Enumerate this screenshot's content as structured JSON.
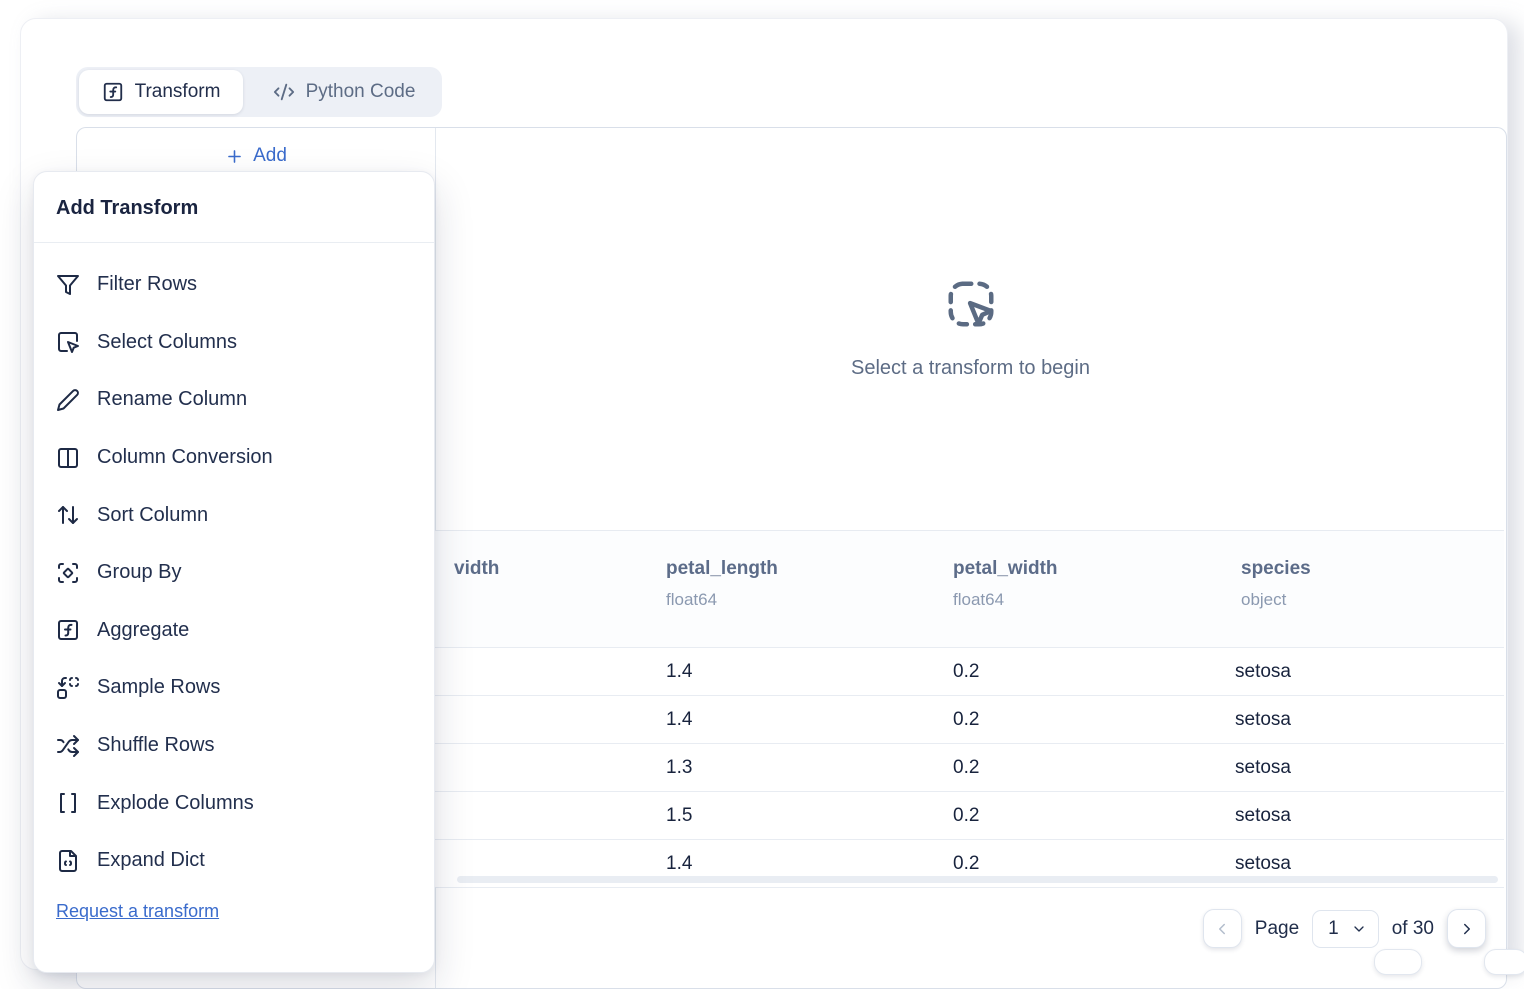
{
  "tabs": {
    "transform": "Transform",
    "python_code": "Python Code"
  },
  "add_button": {
    "label": "Add"
  },
  "add_transform_menu": {
    "title": "Add Transform",
    "items": [
      {
        "icon": "filter-icon",
        "label": "Filter Rows"
      },
      {
        "icon": "select-columns-icon",
        "label": "Select Columns"
      },
      {
        "icon": "rename-column-icon",
        "label": "Rename Column"
      },
      {
        "icon": "column-conversion-icon",
        "label": "Column Conversion"
      },
      {
        "icon": "sort-column-icon",
        "label": "Sort Column"
      },
      {
        "icon": "group-by-icon",
        "label": "Group By"
      },
      {
        "icon": "aggregate-icon",
        "label": "Aggregate"
      },
      {
        "icon": "sample-rows-icon",
        "label": "Sample Rows"
      },
      {
        "icon": "shuffle-rows-icon",
        "label": "Shuffle Rows"
      },
      {
        "icon": "explode-columns-icon",
        "label": "Explode Columns"
      },
      {
        "icon": "expand-dict-icon",
        "label": "Expand Dict"
      }
    ],
    "link": "Request a transform"
  },
  "empty_state": {
    "message": "Select a transform to begin"
  },
  "table": {
    "columns": [
      {
        "name": "vidth",
        "dtype": ""
      },
      {
        "name": "petal_length",
        "dtype": "float64"
      },
      {
        "name": "petal_width",
        "dtype": "float64"
      },
      {
        "name": "species",
        "dtype": "object"
      }
    ],
    "rows": [
      [
        "",
        "1.4",
        "0.2",
        "setosa"
      ],
      [
        "",
        "1.4",
        "0.2",
        "setosa"
      ],
      [
        "",
        "1.3",
        "0.2",
        "setosa"
      ],
      [
        "",
        "1.5",
        "0.2",
        "setosa"
      ],
      [
        "",
        "1.4",
        "0.2",
        "setosa"
      ]
    ]
  },
  "pagination": {
    "page_label": "Page",
    "current_page": "1",
    "of_text": "of 30"
  },
  "colors": {
    "accent_blue": "#3a6bcc",
    "text_dark": "#1f2b47",
    "header_text": "#5c6c89",
    "dtype_text": "#8b99b0",
    "muted_text": "#5d6c85",
    "border": "#d9dfe9"
  }
}
